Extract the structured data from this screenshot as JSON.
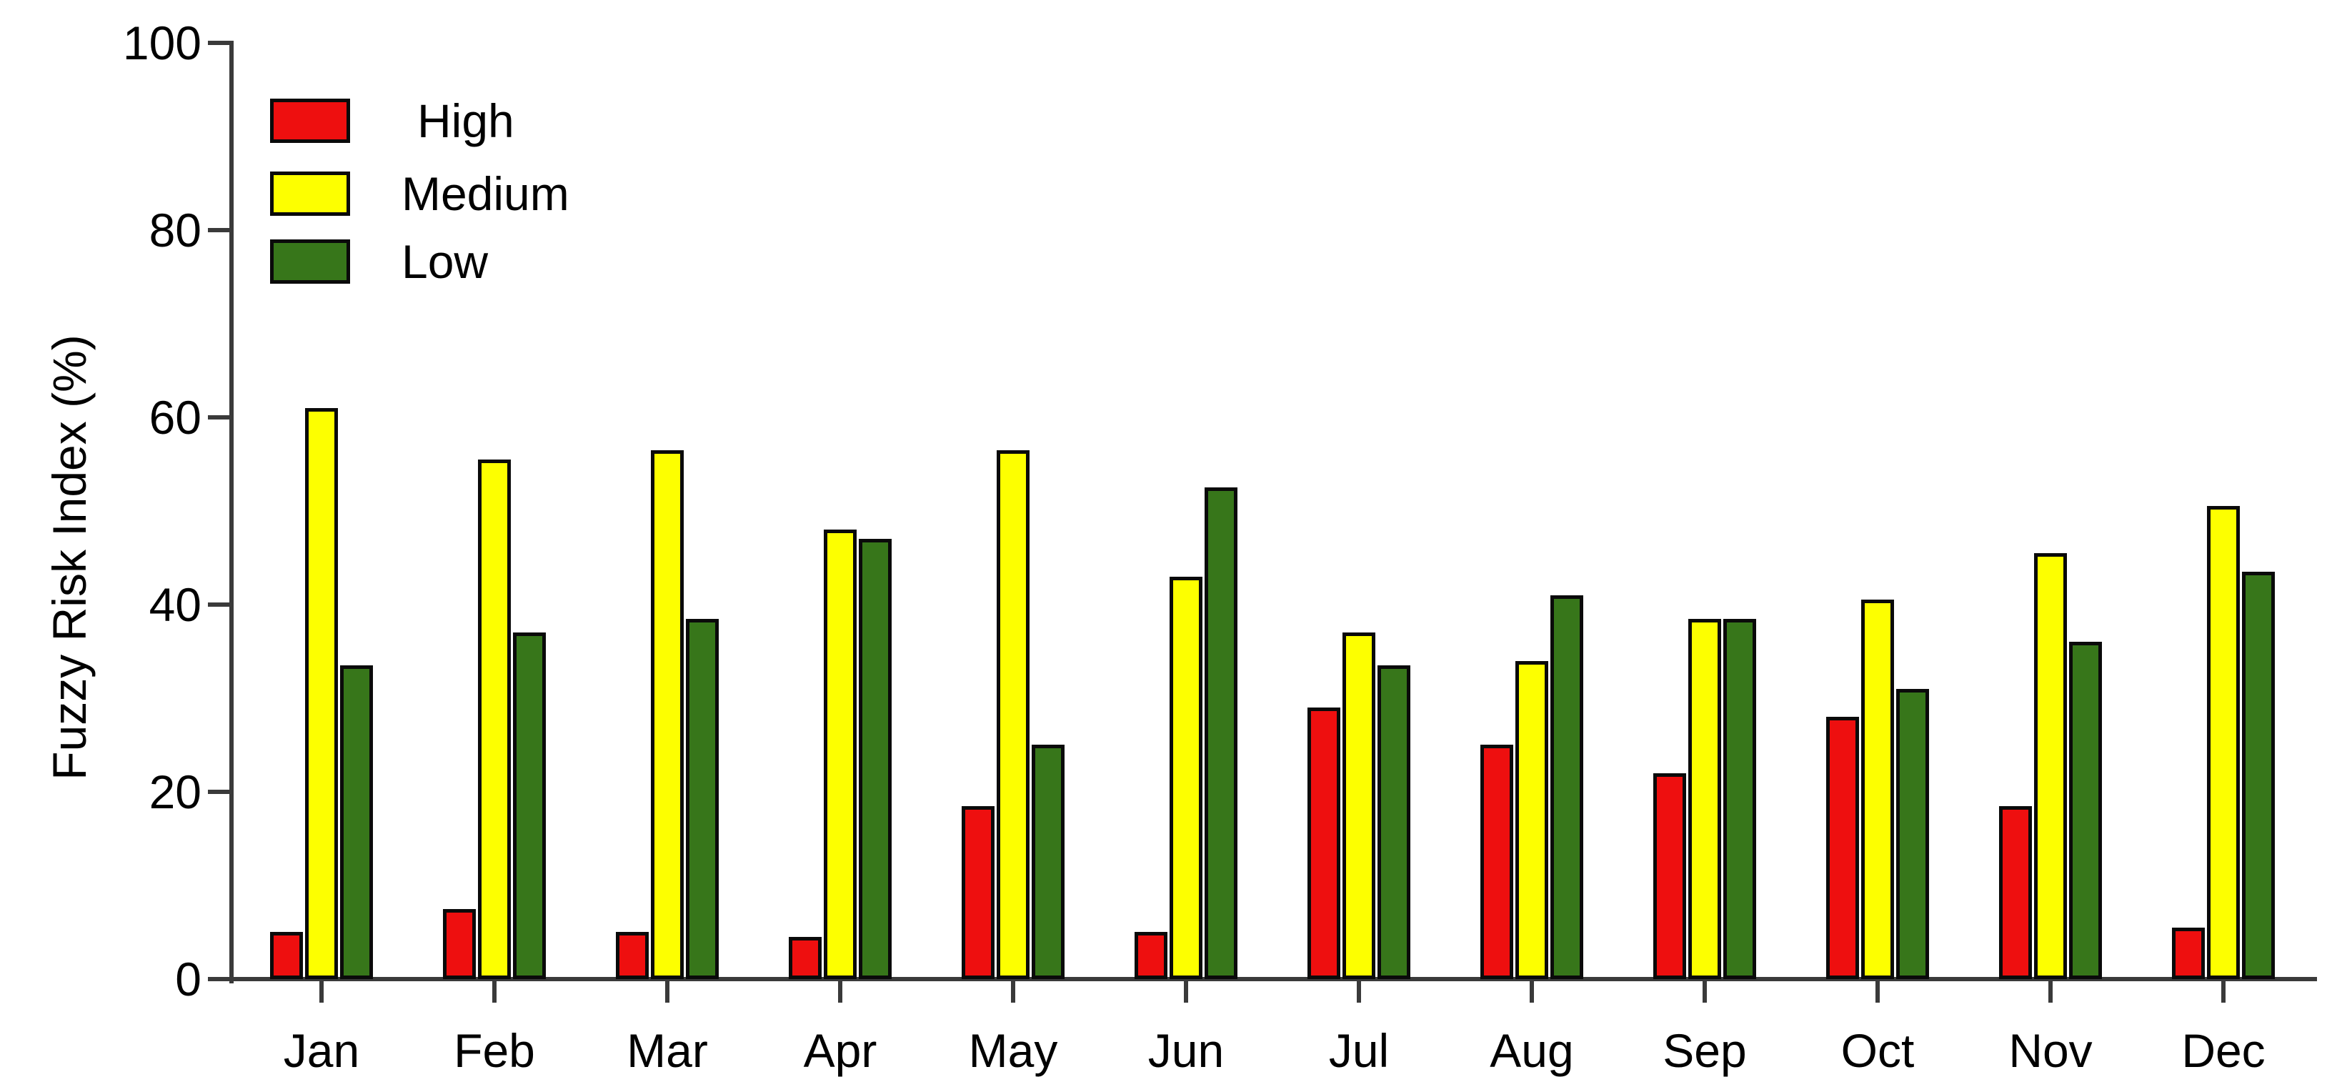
{
  "chart_data": {
    "type": "bar",
    "title": "",
    "xlabel": "",
    "ylabel": "Fuzzy Risk Index (%)",
    "ylim": [
      0,
      100
    ],
    "yticks": [
      0,
      20,
      40,
      60,
      80,
      100
    ],
    "grid": false,
    "legend_position": "top-left-inside",
    "categories": [
      "Jan",
      "Feb",
      "Mar",
      "Apr",
      "May",
      "Jun",
      "Jul",
      "Aug",
      "Sep",
      "Oct",
      "Nov",
      "Dec"
    ],
    "series": [
      {
        "name": "High",
        "color": "#ee0f0f",
        "values": [
          5,
          7.5,
          5,
          4.5,
          18.5,
          5,
          29,
          25,
          22,
          28,
          18.5,
          5.5
        ]
      },
      {
        "name": "Medium",
        "color": "#fdff00",
        "values": [
          61,
          55.5,
          56.5,
          48,
          56.5,
          43,
          37,
          34,
          38.5,
          40.5,
          45.5,
          50.5
        ]
      },
      {
        "name": "Low",
        "color": "#37761a",
        "values": [
          33.5,
          37,
          38.5,
          47,
          25,
          52.5,
          33.5,
          41,
          38.5,
          31,
          36,
          43.5
        ]
      }
    ]
  },
  "style": {
    "background": "#ffffff",
    "axis_color": "#3a3a3a",
    "text_color": "#000000",
    "bar_border": "#0a0a0a"
  }
}
